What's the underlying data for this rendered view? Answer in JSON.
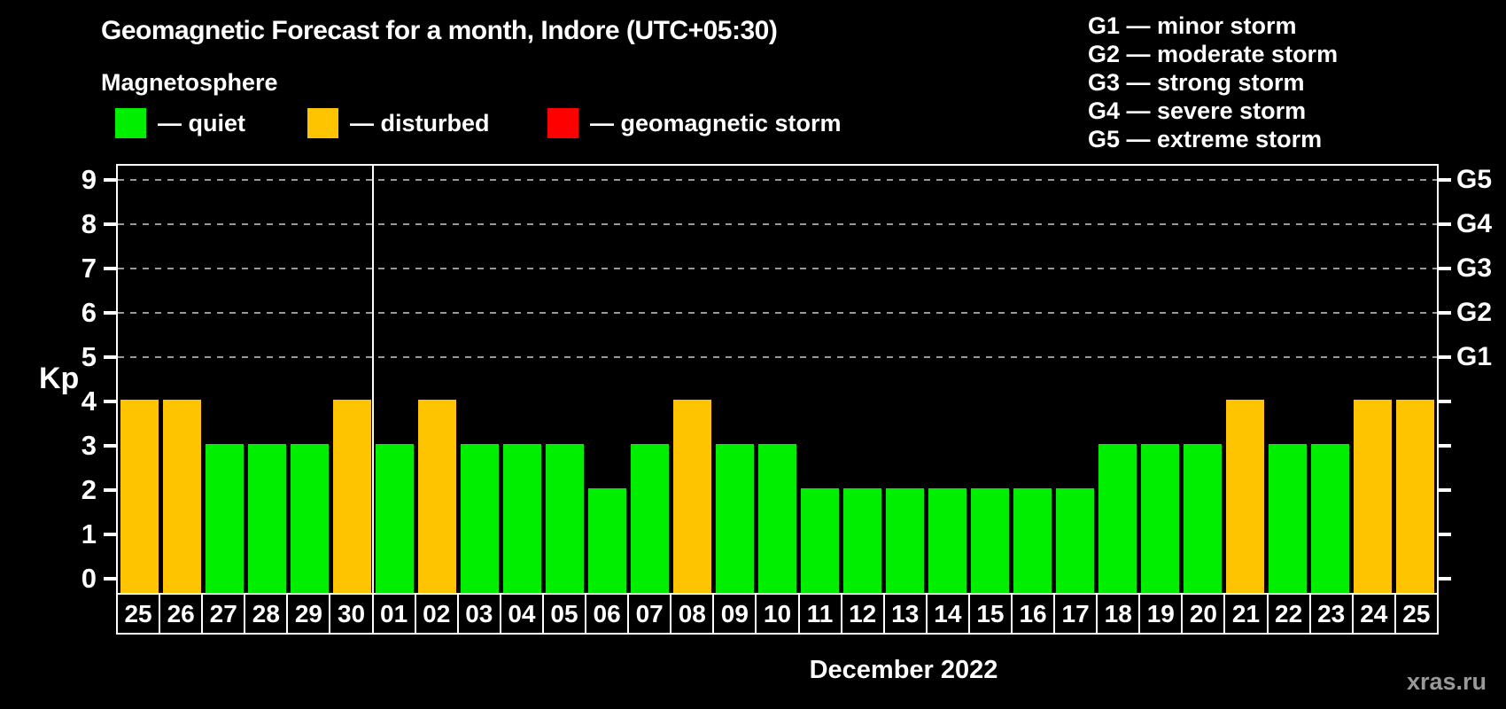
{
  "header": {
    "title": "Geomagnetic Forecast for a month, Indore (UTC+05:30)",
    "subtitle": "Magnetosphere"
  },
  "legend": {
    "items": [
      {
        "name": "quiet",
        "label": "— quiet",
        "color": "#00ee00"
      },
      {
        "name": "disturbed",
        "label": "— disturbed",
        "color": "#ffc400"
      },
      {
        "name": "storm",
        "label": "— geomagnetic storm",
        "color": "#ff0000"
      }
    ]
  },
  "storm_scale_legend": {
    "items": [
      {
        "label": "G1 — minor storm"
      },
      {
        "label": "G2 — moderate storm"
      },
      {
        "label": "G3 — strong storm"
      },
      {
        "label": "G4 — severe storm"
      },
      {
        "label": "G5 — extreme storm"
      }
    ]
  },
  "chart_data": {
    "type": "bar",
    "title": "Geomagnetic Forecast for a month, Indore (UTC+05:30)",
    "ylabel": "Kp",
    "xlabel": "December 2022",
    "ylim": [
      0,
      9.5
    ],
    "grid": "horizontal dashed lines at Kp 5,6,7,8,9",
    "legend_position": "top",
    "y_ticks": [
      "0",
      "1",
      "2",
      "3",
      "4",
      "5",
      "6",
      "7",
      "8",
      "9"
    ],
    "grid_kp_levels": [
      5,
      6,
      7,
      8,
      9
    ],
    "right_axis": {
      "labels": [
        "G1",
        "G2",
        "G3",
        "G4",
        "G5"
      ],
      "at_kp": [
        5,
        6,
        7,
        8,
        9
      ]
    },
    "separator_index": 6,
    "bars": [
      {
        "day": "25",
        "kp": 4,
        "status": "disturbed"
      },
      {
        "day": "26",
        "kp": 4,
        "status": "disturbed"
      },
      {
        "day": "27",
        "kp": 3,
        "status": "quiet"
      },
      {
        "day": "28",
        "kp": 3,
        "status": "quiet"
      },
      {
        "day": "29",
        "kp": 3,
        "status": "quiet"
      },
      {
        "day": "30",
        "kp": 4,
        "status": "disturbed"
      },
      {
        "day": "01",
        "kp": 3,
        "status": "quiet"
      },
      {
        "day": "02",
        "kp": 4,
        "status": "disturbed"
      },
      {
        "day": "03",
        "kp": 3,
        "status": "quiet"
      },
      {
        "day": "04",
        "kp": 3,
        "status": "quiet"
      },
      {
        "day": "05",
        "kp": 3,
        "status": "quiet"
      },
      {
        "day": "06",
        "kp": 2,
        "status": "quiet"
      },
      {
        "day": "07",
        "kp": 3,
        "status": "quiet"
      },
      {
        "day": "08",
        "kp": 4,
        "status": "disturbed"
      },
      {
        "day": "09",
        "kp": 3,
        "status": "quiet"
      },
      {
        "day": "10",
        "kp": 3,
        "status": "quiet"
      },
      {
        "day": "11",
        "kp": 2,
        "status": "quiet"
      },
      {
        "day": "12",
        "kp": 2,
        "status": "quiet"
      },
      {
        "day": "13",
        "kp": 2,
        "status": "quiet"
      },
      {
        "day": "14",
        "kp": 2,
        "status": "quiet"
      },
      {
        "day": "15",
        "kp": 2,
        "status": "quiet"
      },
      {
        "day": "16",
        "kp": 2,
        "status": "quiet"
      },
      {
        "day": "17",
        "kp": 2,
        "status": "quiet"
      },
      {
        "day": "18",
        "kp": 3,
        "status": "quiet"
      },
      {
        "day": "19",
        "kp": 3,
        "status": "quiet"
      },
      {
        "day": "20",
        "kp": 3,
        "status": "quiet"
      },
      {
        "day": "21",
        "kp": 4,
        "status": "disturbed"
      },
      {
        "day": "22",
        "kp": 3,
        "status": "quiet"
      },
      {
        "day": "23",
        "kp": 3,
        "status": "quiet"
      },
      {
        "day": "24",
        "kp": 4,
        "status": "disturbed"
      },
      {
        "day": "25",
        "kp": 4,
        "status": "disturbed"
      }
    ]
  },
  "watermark": "xras.ru",
  "colors": {
    "quiet": "#00ee00",
    "disturbed": "#ffc400",
    "storm": "#ff0000",
    "grid": "#999999",
    "axis": "#ffffff",
    "background": "#000000"
  }
}
